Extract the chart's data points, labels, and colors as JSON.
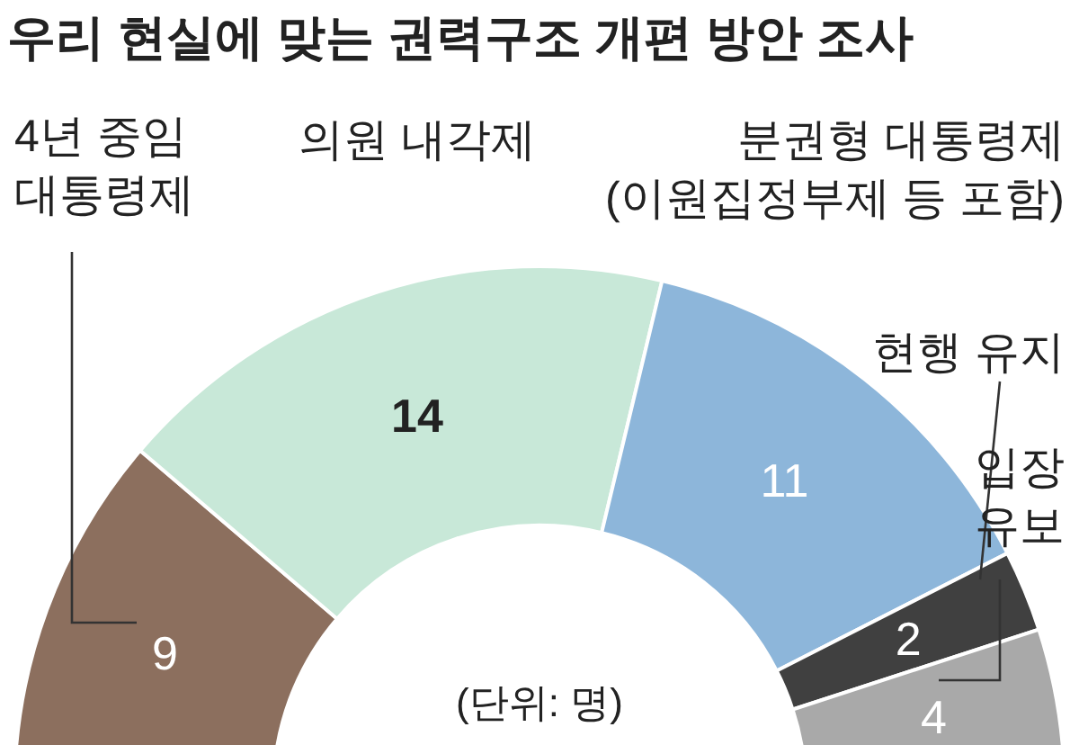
{
  "chart_data": {
    "type": "donut",
    "title": "우리 현실에 맞는 권력구조 개편 방안 조사",
    "categories": [
      "4년 중임\n대통령제",
      "의원 내각제",
      "분권형 대통령제\n(이원집정부제 등 포함)",
      "현행 유지",
      "입장\n유보"
    ],
    "values": [
      9,
      14,
      11,
      2,
      4
    ],
    "colors": [
      "#8c6f5e",
      "#c8e8d8",
      "#8db6da",
      "#404040",
      "#a9a9a9"
    ],
    "data_labels": true,
    "annotations": [
      "(단위: 명)"
    ]
  }
}
